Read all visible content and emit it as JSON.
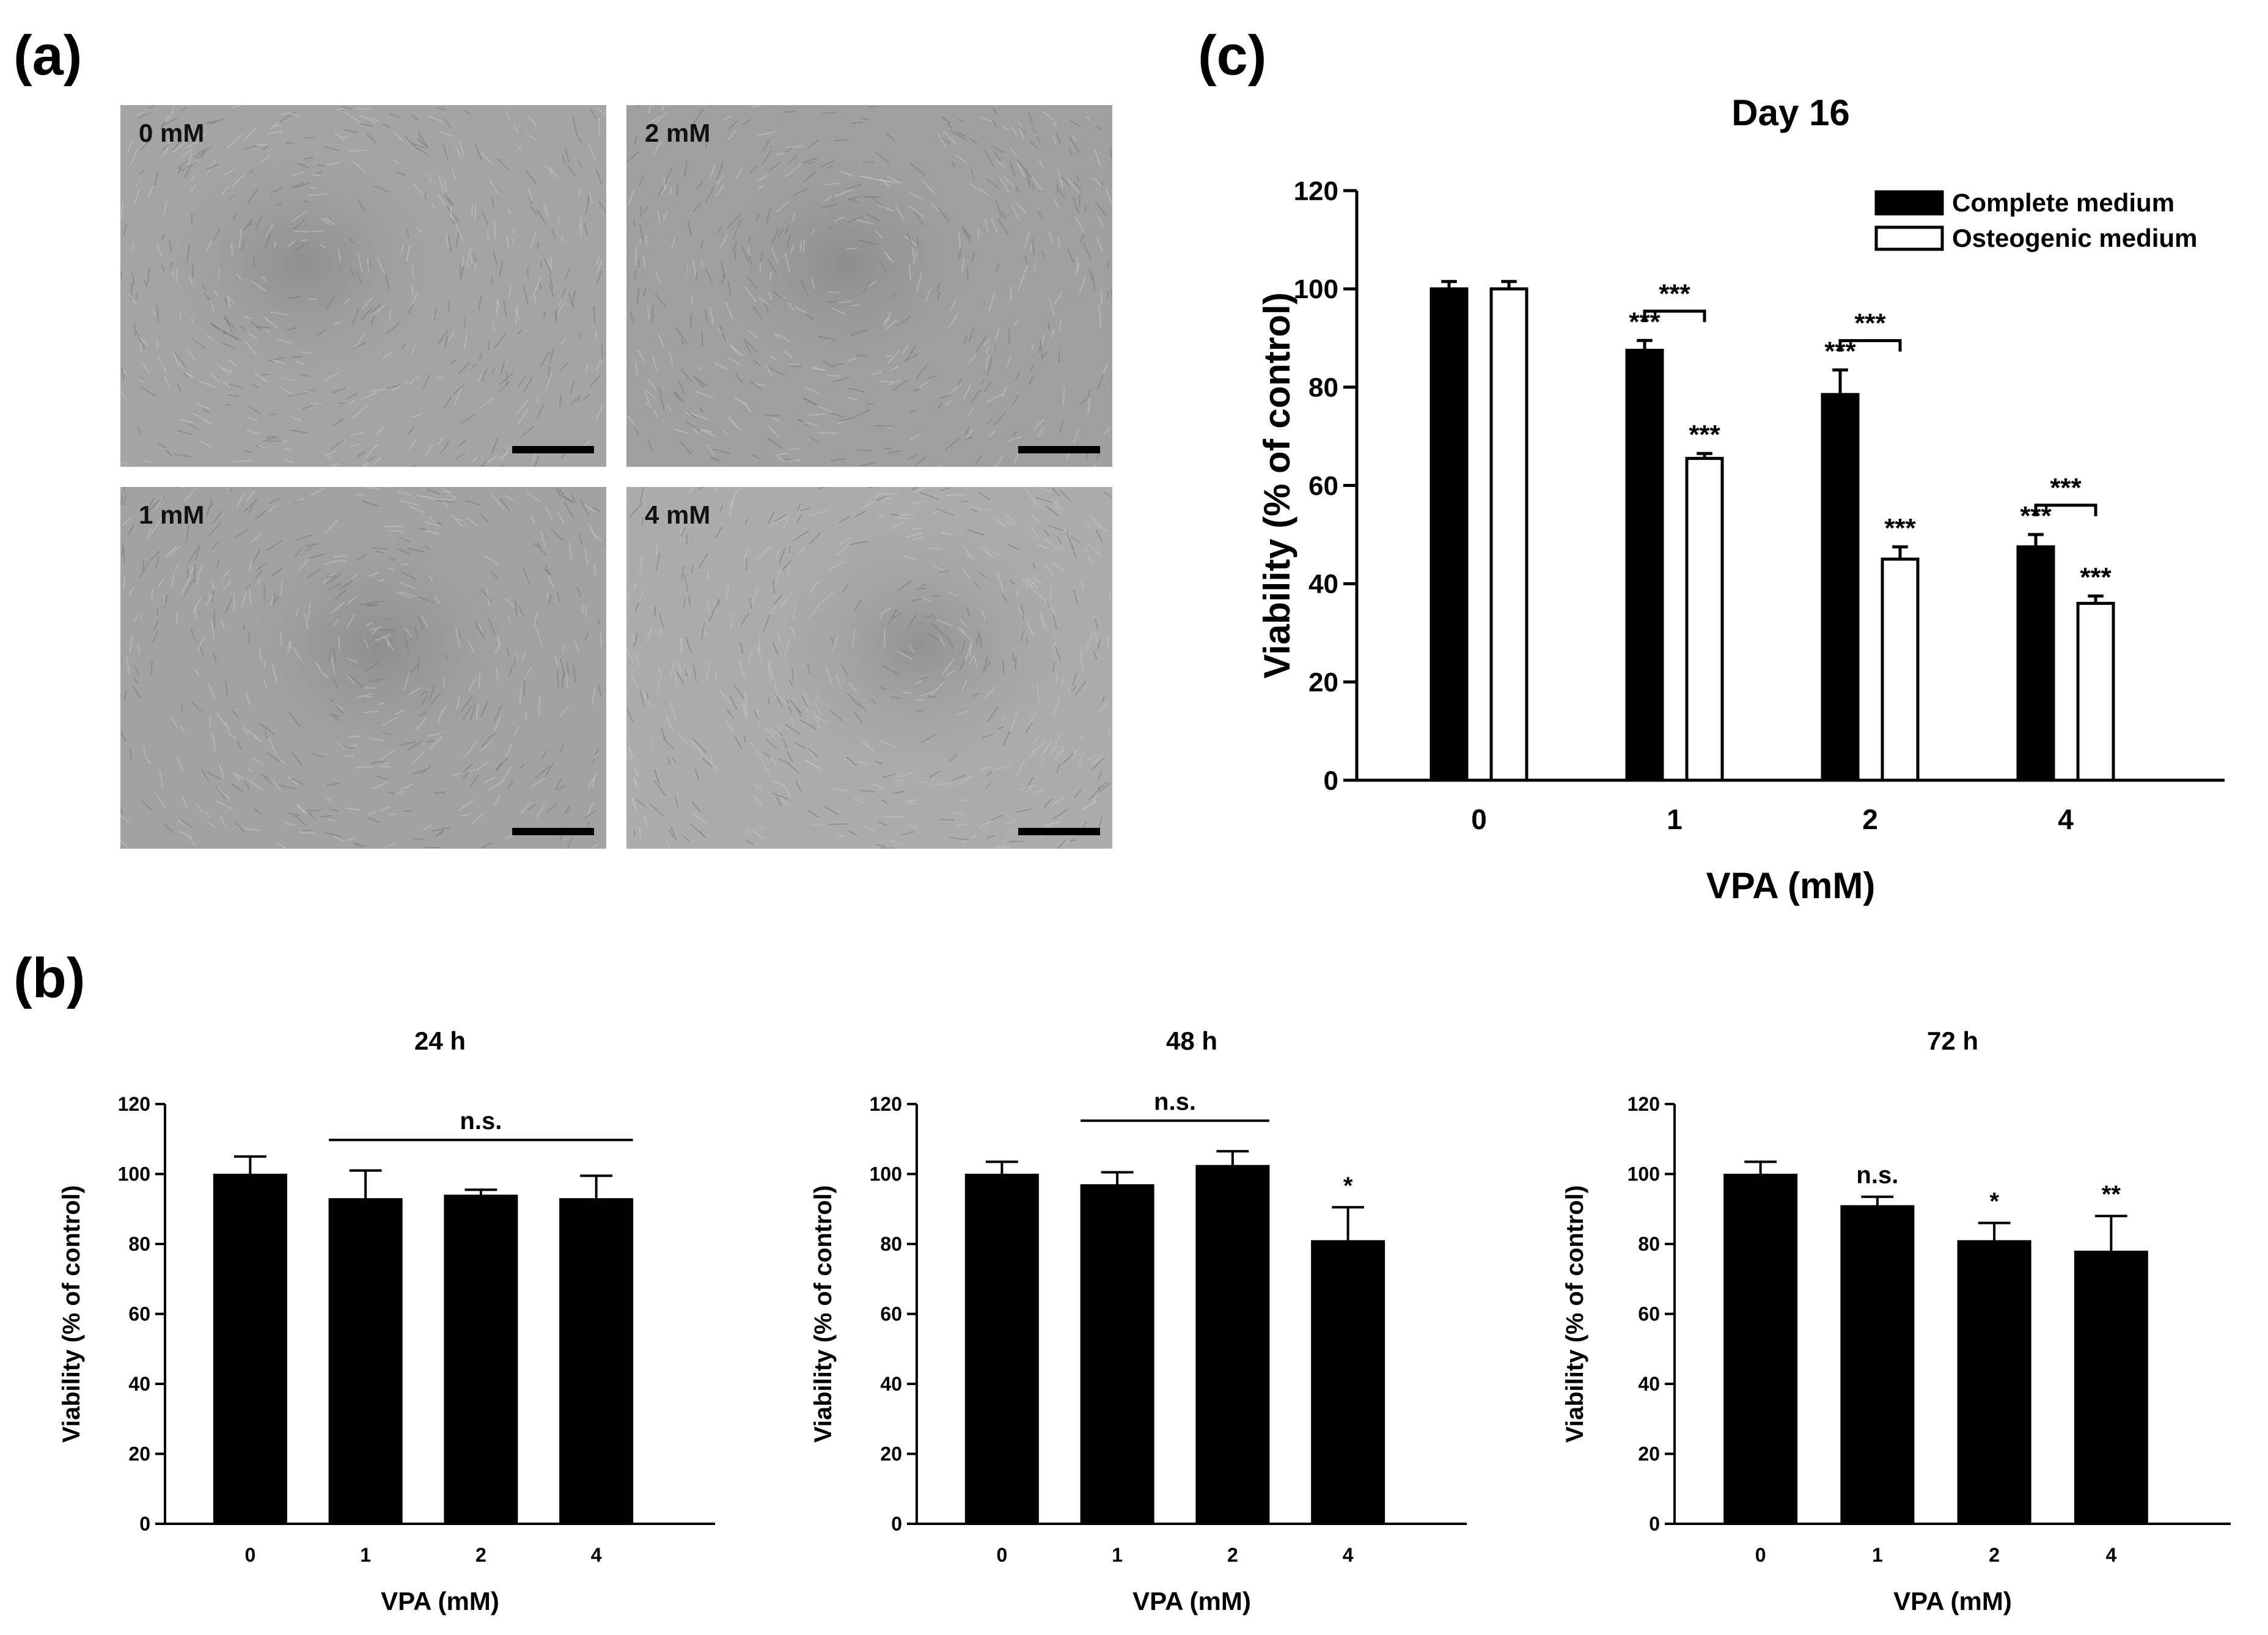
{
  "panel_labels": {
    "a": "(a)",
    "b": "(b)",
    "c": "(c)"
  },
  "micrographs": [
    {
      "label": "0 mM",
      "tone": "#a4a4a4"
    },
    {
      "label": "2 mM",
      "tone": "#a0a0a0"
    },
    {
      "label": "1 mM",
      "tone": "#a2a2a2"
    },
    {
      "label": "4 mM",
      "tone": "#acacac"
    }
  ],
  "chart_data": [
    {
      "id": "c",
      "type": "bar",
      "title": "Day 16",
      "xlabel": "VPA (mM)",
      "ylabel": "Viability (% of control)",
      "categories": [
        "0",
        "1",
        "2",
        "4"
      ],
      "ylim": [
        0,
        120
      ],
      "yticks": [
        "0",
        "20",
        "40",
        "60",
        "80",
        "100",
        "120"
      ],
      "legend_position": "top-right",
      "series": [
        {
          "name": "Complete medium",
          "fill": "#000000",
          "values": [
            100,
            87.5,
            78.5,
            47.5
          ],
          "errors": [
            1.5,
            2,
            5,
            2.5
          ],
          "marks": [
            "",
            "***",
            "***",
            "***"
          ]
        },
        {
          "name": "Osteogenic medium",
          "fill": "#ffffff",
          "values": [
            100,
            65.5,
            45,
            36
          ],
          "errors": [
            1.5,
            1,
            2.5,
            1.5
          ],
          "marks": [
            "",
            "***",
            "***",
            "***"
          ]
        }
      ],
      "pair_brackets": [
        {
          "category": 1,
          "label": "***"
        },
        {
          "category": 2,
          "label": "***"
        },
        {
          "category": 3,
          "label": "***"
        }
      ]
    },
    {
      "id": "b1",
      "type": "bar",
      "title": "24 h",
      "xlabel": "VPA (mM)",
      "ylabel": "Viability (% of control)",
      "categories": [
        "0",
        "1",
        "2",
        "4"
      ],
      "ylim": [
        0,
        120
      ],
      "yticks": [
        "0",
        "20",
        "40",
        "60",
        "80",
        "100",
        "120"
      ],
      "values": [
        100,
        93,
        94,
        93
      ],
      "errors": [
        5,
        8,
        1.5,
        6.5
      ],
      "marks": [
        "",
        "",
        "",
        ""
      ],
      "spans": [
        {
          "from": 1,
          "to": 3,
          "label": "n.s."
        }
      ]
    },
    {
      "id": "b2",
      "type": "bar",
      "title": "48 h",
      "xlabel": "VPA (mM)",
      "ylabel": "Viability (% of control)",
      "categories": [
        "0",
        "1",
        "2",
        "4"
      ],
      "ylim": [
        0,
        120
      ],
      "yticks": [
        "0",
        "20",
        "40",
        "60",
        "80",
        "100",
        "120"
      ],
      "values": [
        100,
        97,
        102.5,
        81
      ],
      "errors": [
        3.5,
        3.5,
        4,
        9.5
      ],
      "marks": [
        "",
        "",
        "",
        "*"
      ],
      "spans": [
        {
          "from": 1,
          "to": 2,
          "label": "n.s."
        }
      ]
    },
    {
      "id": "b3",
      "type": "bar",
      "title": "72 h",
      "xlabel": "VPA (mM)",
      "ylabel": "Viability (% of control)",
      "categories": [
        "0",
        "1",
        "2",
        "4"
      ],
      "ylim": [
        0,
        120
      ],
      "yticks": [
        "0",
        "20",
        "40",
        "60",
        "80",
        "100",
        "120"
      ],
      "values": [
        100,
        91,
        81,
        78
      ],
      "errors": [
        3.5,
        2.5,
        5,
        10
      ],
      "marks": [
        "",
        "n.s.",
        "*",
        "**"
      ],
      "spans": []
    }
  ]
}
